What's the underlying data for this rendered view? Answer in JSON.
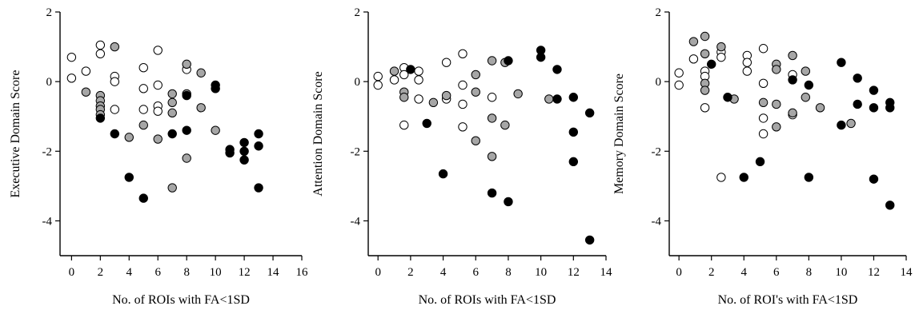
{
  "chart_data": [
    {
      "type": "scatter",
      "xlabel": "No. of ROIs with FA<1SD",
      "ylabel": "Executive Domain Score",
      "xlim": [
        -0.8,
        16
      ],
      "ylim": [
        -5,
        2
      ],
      "xticks": [
        0,
        2,
        4,
        6,
        8,
        10,
        12,
        14,
        16
      ],
      "yticks": [
        2,
        0,
        -2,
        -4
      ],
      "grid": false,
      "series": [
        {
          "fill": "#ffffff",
          "points": [
            [
              0,
              0.7
            ],
            [
              0,
              0.1
            ],
            [
              1,
              0.3
            ],
            [
              2,
              1.05
            ],
            [
              2,
              0.8
            ],
            [
              3,
              0.15
            ],
            [
              3,
              0.0
            ],
            [
              3,
              -0.8
            ],
            [
              5,
              0.4
            ],
            [
              5,
              -0.2
            ],
            [
              5,
              -0.8
            ],
            [
              6,
              0.9
            ],
            [
              6,
              -0.1
            ],
            [
              6,
              -0.7
            ],
            [
              6,
              -0.85
            ],
            [
              8,
              0.35
            ]
          ]
        },
        {
          "fill": "#a6a6a6",
          "points": [
            [
              1,
              -0.3
            ],
            [
              2,
              -0.4
            ],
            [
              2,
              -0.55
            ],
            [
              2,
              -0.7
            ],
            [
              2,
              -0.8
            ],
            [
              2,
              -0.95
            ],
            [
              3,
              1.0
            ],
            [
              4,
              -1.6
            ],
            [
              5,
              -1.25
            ],
            [
              6,
              -1.65
            ],
            [
              7,
              -0.35
            ],
            [
              7,
              -0.6
            ],
            [
              7,
              -0.9
            ],
            [
              7,
              -3.05
            ],
            [
              8,
              0.5
            ],
            [
              8,
              -0.35
            ],
            [
              8,
              -2.2
            ],
            [
              9,
              0.25
            ],
            [
              9,
              -0.75
            ],
            [
              10,
              -1.4
            ]
          ]
        },
        {
          "fill": "#000000",
          "points": [
            [
              2,
              -1.05
            ],
            [
              3,
              -1.5
            ],
            [
              4,
              -2.75
            ],
            [
              5,
              -3.35
            ],
            [
              7,
              -1.5
            ],
            [
              8,
              -0.4
            ],
            [
              8,
              -1.4
            ],
            [
              10,
              -0.1
            ],
            [
              10,
              -0.2
            ],
            [
              11,
              -1.95
            ],
            [
              11,
              -2.05
            ],
            [
              12,
              -1.75
            ],
            [
              12,
              -2.0
            ],
            [
              12,
              -2.25
            ],
            [
              13,
              -1.5
            ],
            [
              13,
              -1.85
            ],
            [
              13,
              -3.05
            ]
          ]
        }
      ]
    },
    {
      "type": "scatter",
      "xlabel": "No. of ROIs with FA<1SD",
      "ylabel": "Attention Domain Score",
      "xlim": [
        -0.6,
        14
      ],
      "ylim": [
        -5,
        2
      ],
      "xticks": [
        0,
        2,
        4,
        6,
        8,
        10,
        12,
        14
      ],
      "yticks": [
        2,
        0,
        -2,
        -4
      ],
      "grid": false,
      "series": [
        {
          "fill": "#ffffff",
          "points": [
            [
              0,
              0.15
            ],
            [
              0,
              -0.1
            ],
            [
              1,
              0.05
            ],
            [
              1.6,
              0.4
            ],
            [
              1.6,
              0.2
            ],
            [
              1.6,
              -1.25
            ],
            [
              2.5,
              0.3
            ],
            [
              2.5,
              0.05
            ],
            [
              2.5,
              -0.5
            ],
            [
              4.2,
              0.55
            ],
            [
              4.2,
              -0.5
            ],
            [
              5.2,
              0.8
            ],
            [
              5.2,
              -0.1
            ],
            [
              5.2,
              -0.65
            ],
            [
              5.2,
              -1.3
            ],
            [
              7,
              -0.45
            ]
          ]
        },
        {
          "fill": "#a6a6a6",
          "points": [
            [
              1,
              0.3
            ],
            [
              1.6,
              -0.3
            ],
            [
              1.6,
              -0.45
            ],
            [
              3.4,
              -0.6
            ],
            [
              4.2,
              -0.4
            ],
            [
              6,
              0.2
            ],
            [
              6,
              -0.3
            ],
            [
              6,
              -1.7
            ],
            [
              7,
              0.6
            ],
            [
              7,
              -1.05
            ],
            [
              7,
              -2.15
            ],
            [
              7.8,
              0.55
            ],
            [
              7.8,
              -1.25
            ],
            [
              8.6,
              -0.35
            ],
            [
              10.5,
              -0.5
            ]
          ]
        },
        {
          "fill": "#000000",
          "points": [
            [
              2,
              0.35
            ],
            [
              3,
              -1.2
            ],
            [
              4,
              -2.65
            ],
            [
              7,
              -3.2
            ],
            [
              8,
              0.6
            ],
            [
              8,
              -3.45
            ],
            [
              10,
              0.9
            ],
            [
              10,
              0.7
            ],
            [
              11,
              0.35
            ],
            [
              11,
              -0.5
            ],
            [
              12,
              -0.45
            ],
            [
              12,
              -1.45
            ],
            [
              12,
              -2.3
            ],
            [
              13,
              -0.9
            ],
            [
              13,
              -4.55
            ]
          ]
        }
      ]
    },
    {
      "type": "scatter",
      "xlabel": "No. of ROI's with FA<1SD",
      "ylabel": "Memory Domain Score",
      "xlim": [
        -0.6,
        14
      ],
      "ylim": [
        -5,
        2
      ],
      "xticks": [
        0,
        2,
        4,
        6,
        8,
        10,
        12,
        14
      ],
      "yticks": [
        2,
        0,
        -2,
        -4
      ],
      "grid": false,
      "series": [
        {
          "fill": "#ffffff",
          "points": [
            [
              0,
              0.25
            ],
            [
              0,
              -0.1
            ],
            [
              0.9,
              0.65
            ],
            [
              1.6,
              0.3
            ],
            [
              1.6,
              0.15
            ],
            [
              1.6,
              -0.75
            ],
            [
              2.6,
              0.85
            ],
            [
              2.6,
              0.7
            ],
            [
              2.6,
              -2.75
            ],
            [
              4.2,
              0.75
            ],
            [
              4.2,
              0.55
            ],
            [
              4.2,
              0.3
            ],
            [
              5.2,
              0.95
            ],
            [
              5.2,
              -0.05
            ],
            [
              5.2,
              -1.05
            ],
            [
              5.2,
              -1.5
            ],
            [
              7,
              0.2
            ],
            [
              7,
              -0.95
            ]
          ]
        },
        {
          "fill": "#a6a6a6",
          "points": [
            [
              0.9,
              1.15
            ],
            [
              1.6,
              1.3
            ],
            [
              1.6,
              0.8
            ],
            [
              1.6,
              -0.05
            ],
            [
              1.6,
              -0.25
            ],
            [
              2.6,
              1.0
            ],
            [
              3.4,
              -0.5
            ],
            [
              5.2,
              -0.6
            ],
            [
              6,
              0.5
            ],
            [
              6,
              0.35
            ],
            [
              6,
              -0.65
            ],
            [
              6,
              -1.3
            ],
            [
              7,
              0.75
            ],
            [
              7,
              -0.9
            ],
            [
              7.8,
              0.3
            ],
            [
              7.8,
              -0.45
            ],
            [
              8.7,
              -0.75
            ],
            [
              10.6,
              -1.2
            ]
          ]
        },
        {
          "fill": "#000000",
          "points": [
            [
              2,
              0.5
            ],
            [
              3,
              -0.45
            ],
            [
              4,
              -2.75
            ],
            [
              5,
              -2.3
            ],
            [
              7,
              0.05
            ],
            [
              8,
              -0.1
            ],
            [
              8,
              -2.75
            ],
            [
              10,
              0.55
            ],
            [
              10,
              -1.25
            ],
            [
              11,
              0.1
            ],
            [
              11,
              -0.65
            ],
            [
              12,
              -0.25
            ],
            [
              12,
              -0.75
            ],
            [
              12,
              -2.8
            ],
            [
              13,
              -0.6
            ],
            [
              13,
              -0.75
            ],
            [
              13,
              -3.55
            ]
          ]
        }
      ]
    }
  ]
}
